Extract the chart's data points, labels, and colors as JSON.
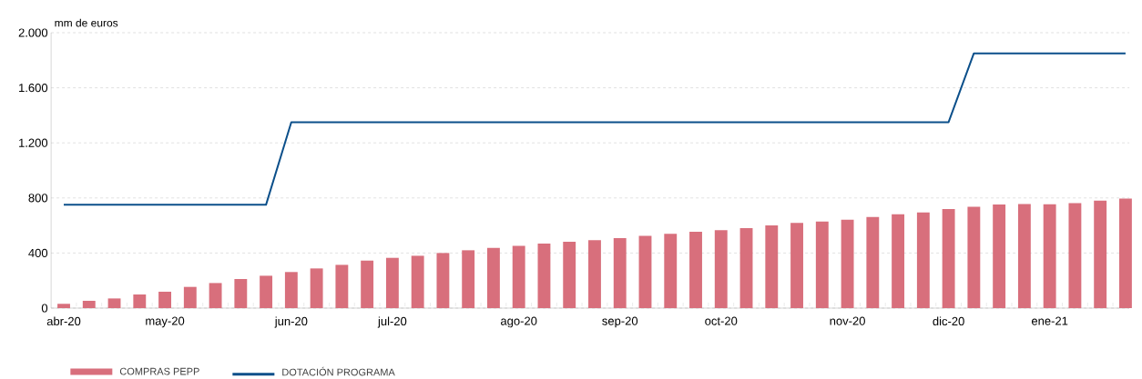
{
  "chart_data": {
    "type": "bar",
    "ylabel": "mm de euros",
    "categories": [
      "abr-20",
      null,
      null,
      null,
      "may-20",
      null,
      null,
      null,
      null,
      "jun-20",
      null,
      null,
      null,
      "jul-20",
      null,
      null,
      null,
      null,
      "ago-20",
      null,
      null,
      null,
      "sep-20",
      null,
      null,
      null,
      "oct-20",
      null,
      null,
      null,
      null,
      "nov-20",
      null,
      null,
      null,
      "dic-20",
      null,
      null,
      null,
      "ene-21",
      null,
      null,
      null
    ],
    "series": [
      {
        "name": "COMPRAS PEPP",
        "color": "#d86f7c",
        "values": [
          31,
          53,
          70,
          99,
          119,
          154,
          182,
          211,
          235,
          262,
          288,
          314,
          345,
          365,
          380,
          400,
          420,
          437,
          452,
          468,
          481,
          494,
          509,
          525,
          540,
          555,
          566,
          580,
          600,
          618,
          628,
          642,
          662,
          681,
          695,
          719,
          736,
          752,
          756,
          754,
          763,
          780,
          796
        ]
      },
      {
        "name": "DOTACIÓN PROGRAMA",
        "type": "line",
        "color": "#0b4f8a",
        "values": [
          750,
          750,
          750,
          750,
          750,
          750,
          750,
          750,
          750,
          1350,
          1350,
          1350,
          1350,
          1350,
          1350,
          1350,
          1350,
          1350,
          1350,
          1350,
          1350,
          1350,
          1350,
          1350,
          1350,
          1350,
          1350,
          1350,
          1350,
          1350,
          1350,
          1350,
          1350,
          1350,
          1350,
          1350,
          1850,
          1850,
          1850,
          1850,
          1850,
          1850,
          1850
        ]
      }
    ],
    "ylim": [
      0,
      2000
    ],
    "yticks": [
      0,
      400,
      800,
      {
        "value": 1200,
        "label": "1.200"
      },
      {
        "value": 1600,
        "label": "1.600"
      },
      {
        "value": 2000,
        "label": "2.000"
      }
    ],
    "grid": "y",
    "legend": "bottom left",
    "line_style": "solid",
    "marker": "none"
  }
}
